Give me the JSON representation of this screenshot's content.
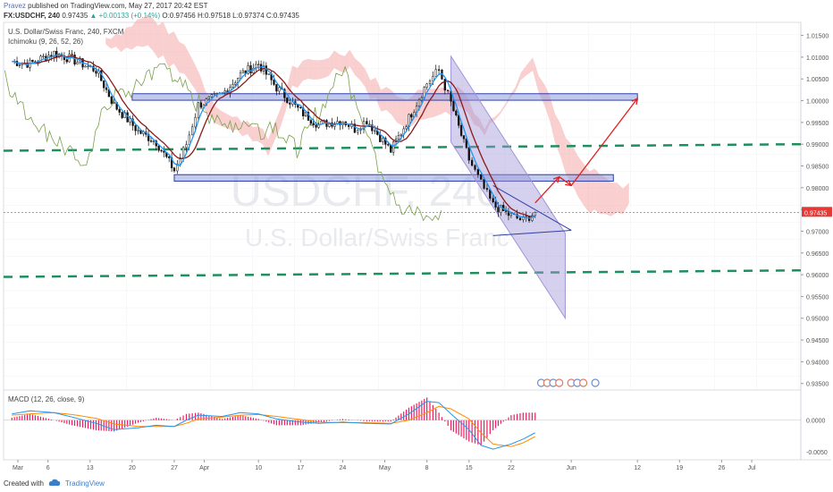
{
  "header": {
    "author": "Pravez",
    "published_text": "published on TradingView.com, May 27, 2017 20:42 EST",
    "symbol": "FX:USDCHF, 240",
    "last": "0.97435",
    "change": "▲ +0.00133 (+0.14%)",
    "ohlc": "O:0.97456 H:0.97518 L:0.97374 C:0.97435"
  },
  "legend": {
    "title": "U.S. Dollar/Swiss Franc, 240, FXCM",
    "indicator": "Ichimoku (9, 26, 52, 26)"
  },
  "watermark": {
    "symbol": "USDCHF, 240",
    "name": "U.S. Dollar/Swiss Franc"
  },
  "footer": {
    "created_with": "Created with",
    "brand": "TradingView"
  },
  "colors": {
    "price": "#111111",
    "tenkan": "#2196f3",
    "kijun": "#8b1a1a",
    "chikou": "#7aa04a",
    "kumo_bear": "#f4a8a8",
    "kumo_bull": "#a8d8a8",
    "zone_fill": "#8e9de0",
    "zone_stroke": "#2f3fa8",
    "support_line": "#1e8f5e",
    "projection": "#e02020",
    "channel": "#9f96d6",
    "macd_line": "#2196f3",
    "signal_line": "#ff8c00",
    "histogram": "#e91e63",
    "last_price_tag": "#e53935"
  },
  "chart_data": [
    {
      "type": "line",
      "title": "U.S. Dollar/Swiss Franc, 240, FXCM",
      "x_dates": [
        "Feb 28",
        "Mar 3",
        "Mar 7",
        "Mar 10",
        "Mar 14",
        "Mar 17",
        "Mar 21",
        "Mar 24",
        "Mar 27",
        "Mar 29",
        "Mar 31",
        "Apr 4",
        "Apr 7",
        "Apr 10",
        "Apr 13",
        "Apr 17",
        "Apr 20",
        "Apr 24",
        "Apr 26",
        "Apr 28",
        "May 2",
        "May 5",
        "May 8",
        "May 10",
        "May 12",
        "May 15",
        "May 17",
        "May 19",
        "May 22",
        "May 24",
        "May 26"
      ],
      "x_tick_labels": [
        "Mar",
        "6",
        "13",
        "20",
        "27",
        "Apr",
        "10",
        "17",
        "24",
        "May",
        "8",
        "15",
        "22",
        "Jun",
        "12",
        "19",
        "26",
        "Jul"
      ],
      "series": [
        {
          "kind": "close",
          "values": [
            1.009,
            1.0085,
            1.011,
            1.0095,
            1.007,
            0.999,
            0.993,
            0.9905,
            0.984,
            0.99,
            0.999,
            1.0015,
            1.006,
            1.0085,
            1.003,
            0.9975,
            0.9945,
            0.9955,
            0.9935,
            0.9955,
            0.9885,
            0.996,
            1.004,
            1.007,
            0.9995,
            0.9865,
            0.981,
            0.976,
            0.9735,
            0.9725,
            0.97435
          ]
        }
      ],
      "y_ticks": [
        "1.01500",
        "1.01000",
        "1.00500",
        "1.00000",
        "0.99500",
        "0.99000",
        "0.98500",
        "0.98000",
        "0.97500",
        "0.97000",
        "0.96500",
        "0.96000",
        "0.95500",
        "0.95000",
        "0.94500",
        "0.94000",
        "0.93500"
      ],
      "ylim": [
        0.9335,
        1.018
      ],
      "last_price_label": "0.97435",
      "zones": [
        {
          "from": 1.0001,
          "to": 1.0016
        },
        {
          "from": 0.9815,
          "to": 0.983
        }
      ],
      "support_lines": [
        0.9885,
        0.9595
      ],
      "projection": [
        "May 26 0.9765",
        "May 30 0.9825",
        "Jun 1 0.9805",
        "Jun 12 1.0005"
      ],
      "grid": true
    },
    {
      "type": "line",
      "title": "MACD (12, 26, close, 9)",
      "y_ticks": [
        "0.0000",
        "-0.0050"
      ],
      "ylim": [
        -0.0063,
        0.0048
      ],
      "series": [
        {
          "kind": "macd",
          "values": [
            0.001,
            0.0015,
            0.0012,
            0.0005,
            -0.0005,
            -0.0015,
            -0.0012,
            -0.0008,
            -0.001,
            0.0,
            0.0008,
            0.0006,
            0.0012,
            0.001,
            0.0002,
            -0.0003,
            -0.0005,
            -0.0003,
            -0.0004,
            -0.0005,
            -0.0006,
            0.001,
            0.003,
            0.0028,
            0.001,
            -0.0015,
            -0.004,
            -0.0046,
            -0.0038,
            -0.003,
            -0.002
          ]
        },
        {
          "kind": "signal",
          "values": [
            0.0008,
            0.001,
            0.0012,
            0.0009,
            0.0003,
            -0.0006,
            -0.001,
            -0.001,
            -0.001,
            -0.0005,
            0.0002,
            0.0005,
            0.0008,
            0.0009,
            0.0006,
            0.0001,
            -0.0003,
            -0.0004,
            -0.0004,
            -0.0004,
            -0.0005,
            0.0,
            0.0012,
            0.0022,
            0.0018,
            0.0002,
            -0.002,
            -0.0038,
            -0.0042,
            -0.0036,
            -0.0026
          ]
        }
      ]
    }
  ]
}
